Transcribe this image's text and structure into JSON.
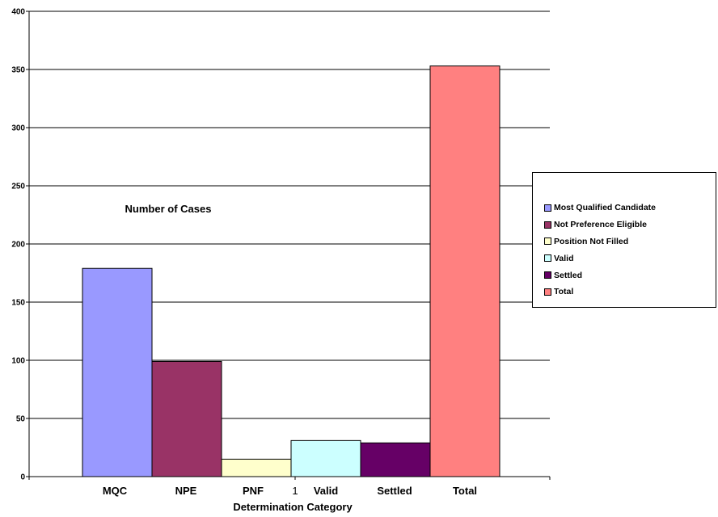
{
  "chart_data": {
    "type": "bar",
    "categories": [
      "MQC",
      "NPE",
      "PNF",
      "Valid",
      "Settled",
      "Total"
    ],
    "values": [
      179,
      99,
      15,
      31,
      29,
      353
    ],
    "colors": [
      "#9999ff",
      "#993366",
      "#ffffcc",
      "#ccffff",
      "#660066",
      "#ff8080"
    ],
    "legend": [
      "Most Qualified Candidate",
      "Not Preference Eligible",
      "Position Not Filled",
      "Valid",
      "Settled",
      "Total"
    ],
    "legend_position": "right",
    "xlabel": "Determination Category",
    "x_tick_center": "1",
    "annotation": "Number of Cases",
    "ylim": [
      0,
      400
    ],
    "yticks": [
      0,
      50,
      100,
      150,
      200,
      250,
      300,
      350,
      400
    ],
    "grid": true
  }
}
